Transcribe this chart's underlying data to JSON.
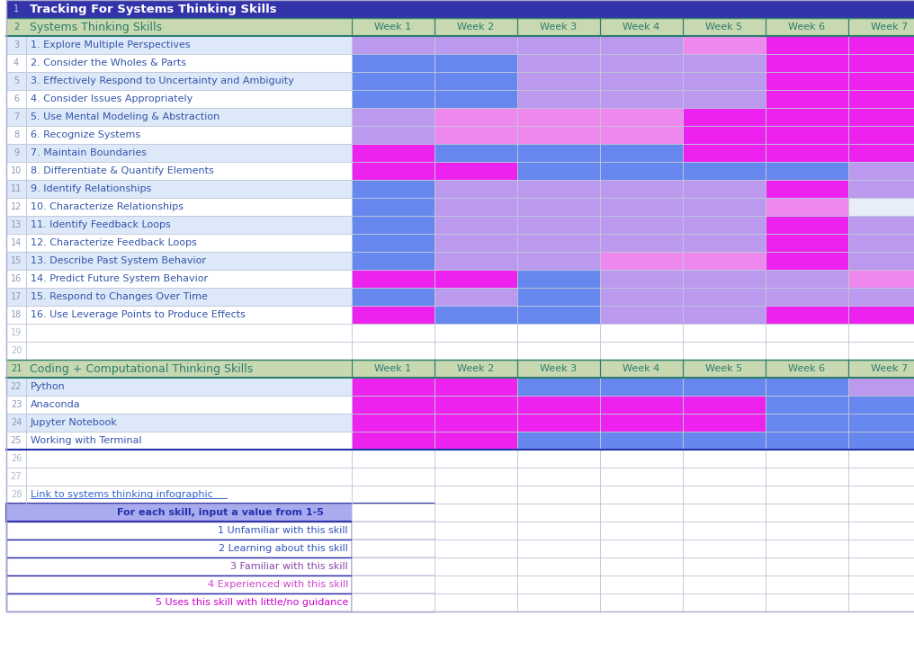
{
  "title": "Tracking For Systems Thinking Skills",
  "title_bg": "#3333aa",
  "title_fg": "#ffffff",
  "section1_header": "Systems Thinking Skills",
  "section1_header_bg": "#c8d8b0",
  "section1_header_fg": "#2d7d6f",
  "section2_header": "Coding + Computational Thinking Skills",
  "section2_header_bg": "#c8d8b0",
  "section2_header_fg": "#2d7d6f",
  "week_header_bg": "#c8d8b0",
  "week_header_fg": "#2d7d6f",
  "week_labels": [
    "Week 1",
    "Week 2",
    "Week 3",
    "Week 4",
    "Week 5",
    "Week 6",
    "Week 7"
  ],
  "section1_skills": [
    "1. Explore Multiple Perspectives",
    "2. Consider the Wholes & Parts",
    "3. Effectively Respond to Uncertainty and Ambiguity",
    "4. Consider Issues Appropriately",
    "5. Use Mental Modeling & Abstraction",
    "6. Recognize Systems",
    "7. Maintain Boundaries",
    "8. Differentiate & Quantify Elements",
    "9. Identify Relationships",
    "10. Characterize Relationships",
    "11. Identify Feedback Loops",
    "12. Characterize Feedback Loops",
    "13. Describe Past System Behavior",
    "14. Predict Future System Behavior",
    "15. Respond to Changes Over Time",
    "16. Use Leverage Points to Produce Effects"
  ],
  "section2_skills": [
    "Python",
    "Anaconda",
    "Jupyter Notebook",
    "Working with Terminal"
  ],
  "skill_text_color": "#3355aa",
  "grid_color": "#c0c8d8",
  "s1_values": [
    [
      3,
      3,
      3,
      3,
      4,
      5,
      5
    ],
    [
      2,
      2,
      3,
      3,
      3,
      5,
      5
    ],
    [
      2,
      2,
      3,
      3,
      3,
      5,
      5
    ],
    [
      2,
      2,
      3,
      3,
      3,
      5,
      5
    ],
    [
      3,
      4,
      4,
      4,
      5,
      5,
      5
    ],
    [
      3,
      4,
      4,
      4,
      5,
      5,
      5
    ],
    [
      5,
      2,
      2,
      2,
      5,
      5,
      5
    ],
    [
      5,
      5,
      2,
      2,
      2,
      2,
      3
    ],
    [
      2,
      3,
      3,
      3,
      3,
      5,
      3
    ],
    [
      2,
      3,
      3,
      3,
      3,
      4,
      0
    ],
    [
      2,
      3,
      3,
      3,
      3,
      5,
      3
    ],
    [
      2,
      3,
      3,
      3,
      3,
      5,
      3
    ],
    [
      2,
      3,
      3,
      4,
      4,
      5,
      3
    ],
    [
      5,
      5,
      2,
      3,
      3,
      3,
      4
    ],
    [
      2,
      3,
      2,
      3,
      3,
      3,
      3
    ],
    [
      5,
      2,
      2,
      3,
      3,
      5,
      5
    ]
  ],
  "s2_values": [
    [
      5,
      5,
      2,
      2,
      2,
      2,
      3
    ],
    [
      5,
      5,
      5,
      5,
      5,
      2,
      2
    ],
    [
      5,
      5,
      5,
      5,
      5,
      2,
      2
    ],
    [
      5,
      5,
      2,
      2,
      2,
      2,
      2
    ]
  ],
  "color_map": {
    "0": "#e8eef8",
    "1": "#2233cc",
    "2": "#6688ee",
    "3": "#bb99ee",
    "4": "#ee88ee",
    "5": "#ee22ee"
  },
  "legend_labels": [
    "1 Unfamiliar with this skill",
    "2 Learning about this skill",
    "3 Familiar with this skill",
    "4 Experienced with this skill",
    "5 Uses this skill with little/no guidance"
  ],
  "legend_colors": [
    "#2233cc",
    "#6688ee",
    "#bb99ee",
    "#ee88ee",
    "#ee22ee"
  ],
  "legend_text_colors": [
    "#3355bb",
    "#3355bb",
    "#8844aa",
    "#cc44cc",
    "#cc00cc"
  ],
  "link_text": "Link to systems thinking infographic",
  "legend_header": "For each skill, input a value from 1-5",
  "legend_header_bg": "#aaaaee",
  "legend_border_color": "#3333aa"
}
